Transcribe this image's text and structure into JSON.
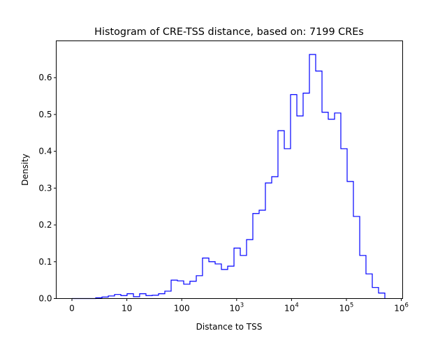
{
  "chart_data": {
    "type": "histogram",
    "title": "Histogram of CRE-TSS distance, based on: 7199 CREs",
    "xlabel": "Distance to TSS",
    "ylabel": "Density",
    "xscale": "symlog",
    "linthresh": 10,
    "xlim": [
      -3,
      1000000
    ],
    "ylim": [
      0,
      0.7
    ],
    "grid": false,
    "line_color": "#0000ff",
    "yticks": [
      {
        "v": 0,
        "label": "0.0"
      },
      {
        "v": 0.1,
        "label": "0.1"
      },
      {
        "v": 0.2,
        "label": "0.2"
      },
      {
        "v": 0.3,
        "label": "0.3"
      },
      {
        "v": 0.4,
        "label": "0.4"
      },
      {
        "v": 0.5,
        "label": "0.5"
      },
      {
        "v": 0.6,
        "label": "0.6"
      }
    ],
    "xticks": [
      {
        "v": 0,
        "base": "0",
        "exp": ""
      },
      {
        "v": 10,
        "base": "10",
        "exp": ""
      },
      {
        "v": 100,
        "base": "100",
        "exp": ""
      },
      {
        "v": 1000,
        "base": "10",
        "exp": "3"
      },
      {
        "v": 10000,
        "base": "10",
        "exp": "4"
      },
      {
        "v": 100000,
        "base": "10",
        "exp": "5"
      },
      {
        "v": 1000000,
        "base": "10",
        "exp": "6"
      }
    ],
    "bin_edges": [
      0,
      4.33,
      5.47,
      6.62,
      7.76,
      8.91,
      10.1,
      13.2,
      17.1,
      22.3,
      29.0,
      37.8,
      49.2,
      64.1,
      83.4,
      108.6,
      141,
      184,
      239,
      312,
      406,
      528,
      687,
      895,
      1165,
      1516,
      1973,
      2570,
      3342,
      4355,
      5662,
      7379,
      9594,
      12500,
      16260,
      21180,
      27540,
      35890,
      46670,
      60810,
      79070,
      103000,
      134000,
      174600,
      227000,
      295800,
      384600,
      501000
    ],
    "density": [
      0,
      0.002,
      0.004,
      0.007,
      0.011,
      0.008,
      0.013,
      0.005,
      0.013,
      0.008,
      0.009,
      0.013,
      0.02,
      0.05,
      0.048,
      0.039,
      0.047,
      0.062,
      0.11,
      0.1,
      0.094,
      0.079,
      0.088,
      0.137,
      0.117,
      0.16,
      0.231,
      0.24,
      0.314,
      0.331,
      0.456,
      0.407,
      0.554,
      0.496,
      0.558,
      0.663,
      0.618,
      0.506,
      0.487,
      0.504,
      0.407,
      0.318,
      0.223,
      0.117,
      0.067,
      0.03,
      0.015
    ]
  }
}
